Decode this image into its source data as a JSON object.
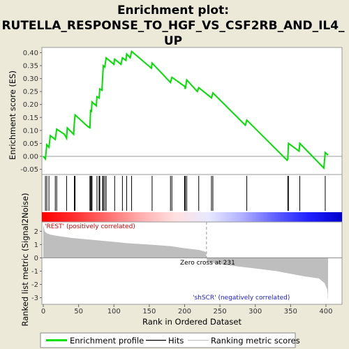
{
  "title_lines": [
    "Enrichment plot:",
    "RUTELLA_RESPONSE_TO_HGF_VS_CSF2RB_AND_IL4_",
    "UP"
  ],
  "colors": {
    "background": "#ece9d8",
    "es_line": "#00e000",
    "hits": "#000000",
    "metric_fill": "#bebebe",
    "pos_label": "#d00000",
    "neg_label": "#1a1acc"
  },
  "chart_data": [
    {
      "type": "line",
      "name": "enrichment-score-panel",
      "ylabel": "Enrichment score (ES)",
      "ylim": [
        -0.07,
        0.42
      ],
      "yticks": [
        -0.05,
        0.0,
        0.05,
        0.1,
        0.15,
        0.2,
        0.25,
        0.3,
        0.35,
        0.4
      ],
      "ytick_labels": [
        "-0.05",
        "0.00",
        "0.05",
        "0.10",
        "0.15",
        "0.20",
        "0.25",
        "0.30",
        "0.35",
        "0.40"
      ],
      "xlim": [
        0,
        425
      ],
      "zero_line": true,
      "series": [
        {
          "name": "Enrichment profile",
          "points": [
            [
              0,
              0.0
            ],
            [
              3,
              -0.01
            ],
            [
              5,
              0.045
            ],
            [
              8,
              0.035
            ],
            [
              10,
              0.08
            ],
            [
              17,
              0.065
            ],
            [
              19,
              0.105
            ],
            [
              30,
              0.085
            ],
            [
              33,
              0.07
            ],
            [
              34,
              0.11
            ],
            [
              43,
              0.085
            ],
            [
              44,
              0.13
            ],
            [
              45,
              0.16
            ],
            [
              55,
              0.135
            ],
            [
              63,
              0.115
            ],
            [
              66,
              0.11
            ],
            [
              67,
              0.18
            ],
            [
              68,
              0.17
            ],
            [
              69,
              0.21
            ],
            [
              75,
              0.195
            ],
            [
              76,
              0.23
            ],
            [
              79,
              0.225
            ],
            [
              80,
              0.26
            ],
            [
              83,
              0.255
            ],
            [
              84,
              0.305
            ],
            [
              85,
              0.35
            ],
            [
              87,
              0.345
            ],
            [
              89,
              0.38
            ],
            [
              100,
              0.355
            ],
            [
              101,
              0.375
            ],
            [
              110,
              0.355
            ],
            [
              112,
              0.38
            ],
            [
              117,
              0.37
            ],
            [
              118,
              0.395
            ],
            [
              123,
              0.38
            ],
            [
              125,
              0.405
            ],
            [
              153,
              0.34
            ],
            [
              154,
              0.36
            ],
            [
              180,
              0.285
            ],
            [
              182,
              0.305
            ],
            [
              200,
              0.27
            ],
            [
              201,
              0.26
            ],
            [
              203,
              0.295
            ],
            [
              218,
              0.25
            ],
            [
              220,
              0.265
            ],
            [
              236,
              0.23
            ],
            [
              238,
              0.225
            ],
            [
              240,
              0.245
            ],
            [
              286,
              0.12
            ],
            [
              288,
              0.14
            ],
            [
              345,
              -0.015
            ],
            [
              346,
              -0.01
            ],
            [
              347,
              0.05
            ],
            [
              362,
              0.02
            ],
            [
              363,
              0.05
            ],
            [
              397,
              -0.045
            ],
            [
              399,
              0.015
            ],
            [
              403,
              0.005
            ]
          ]
        }
      ]
    },
    {
      "type": "hits",
      "name": "hit-positions",
      "xlim": [
        0,
        425
      ],
      "positions": [
        3,
        5,
        8,
        17,
        19,
        33,
        44,
        45,
        66,
        67,
        68,
        69,
        76,
        79,
        80,
        84,
        85,
        87,
        89,
        101,
        112,
        118,
        125,
        154,
        180,
        182,
        200,
        201,
        203,
        220,
        238,
        240,
        288,
        346,
        347,
        363,
        399
      ],
      "colorbar": {
        "stops": [
          "#ff0000",
          "#ff3030",
          "#ff7070",
          "#ffb0b0",
          "#ffe0e0",
          "#e8e8ff",
          "#b0b0ff",
          "#6060ff",
          "#2020ff",
          "#0000cc"
        ],
        "labels": []
      }
    },
    {
      "type": "area",
      "name": "ranked-metric-panel",
      "xlabel": "Rank in Ordered Dataset",
      "ylabel": "Ranked list metric (Signal2Noise)",
      "xlim": [
        0,
        425
      ],
      "ylim": [
        -3.5,
        2.7
      ],
      "xticks": [
        0,
        50,
        100,
        150,
        200,
        250,
        300,
        350,
        400
      ],
      "yticks": [
        -3,
        -2,
        -1,
        0,
        1,
        2
      ],
      "zero_cross_rank": 231,
      "points": [
        [
          0,
          2.5
        ],
        [
          2,
          2.0
        ],
        [
          5,
          1.85
        ],
        [
          10,
          1.75
        ],
        [
          20,
          1.65
        ],
        [
          40,
          1.5
        ],
        [
          60,
          1.4
        ],
        [
          80,
          1.3
        ],
        [
          100,
          1.2
        ],
        [
          120,
          1.1
        ],
        [
          150,
          1.0
        ],
        [
          180,
          0.88
        ],
        [
          200,
          0.72
        ],
        [
          220,
          0.6
        ],
        [
          230,
          0.45
        ],
        [
          231,
          0.0
        ],
        [
          232,
          -0.3
        ],
        [
          260,
          -0.55
        ],
        [
          300,
          -0.8
        ],
        [
          330,
          -1.0
        ],
        [
          350,
          -1.2
        ],
        [
          370,
          -1.4
        ],
        [
          390,
          -1.55
        ],
        [
          398,
          -1.9
        ],
        [
          402,
          -2.4
        ],
        [
          403,
          -3.2
        ]
      ]
    }
  ],
  "annotations": {
    "positive": "'REST' (positively correlated)",
    "negative": "'shSCR' (negatively correlated)",
    "zero_cross": "Zero cross at 231"
  },
  "legend": {
    "items": [
      {
        "label": "Enrichment profile",
        "color": "#00e000",
        "kind": "thick-line"
      },
      {
        "label": "Hits",
        "color": "#000000",
        "kind": "line"
      },
      {
        "label": "Ranking metric scores",
        "color": "#bebebe",
        "kind": "thin-line"
      }
    ]
  }
}
